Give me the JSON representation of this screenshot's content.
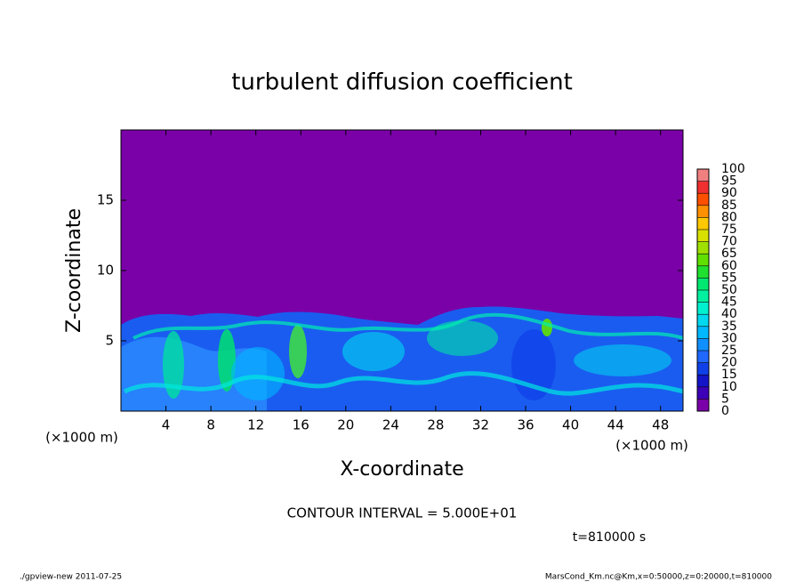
{
  "chart_data": {
    "type": "heatmap",
    "title": "turbulent diffusion coefficient",
    "x_label": "X-coordinate",
    "y_label": "Z-coordinate",
    "x_unit": "(×1000 m)",
    "y_unit": "(×1000 m)",
    "xlim": [
      0,
      50
    ],
    "xticks": [
      4,
      8,
      12,
      16,
      20,
      24,
      28,
      32,
      36,
      40,
      44,
      48
    ],
    "ylim": [
      0,
      20
    ],
    "yticks": [
      5,
      10,
      15
    ],
    "colorbar": {
      "levels": [
        0,
        5,
        10,
        15,
        20,
        25,
        30,
        35,
        40,
        45,
        50,
        55,
        60,
        65,
        70,
        75,
        80,
        85,
        90,
        95,
        100
      ],
      "colors": [
        "#7a00a8",
        "#3c00b8",
        "#1414c8",
        "#1040e8",
        "#2068ff",
        "#1090ff",
        "#00b8ff",
        "#00d8f0",
        "#00f0d0",
        "#00f0a0",
        "#00e870",
        "#20e030",
        "#60e000",
        "#a0e000",
        "#d8e000",
        "#ffc800",
        "#ff9000",
        "#ff5000",
        "#f03030",
        "#f08080"
      ]
    },
    "annotation": "CONTOUR INTERVAL = 5.000E+01",
    "time_label": "t=810000 s",
    "footer_left": "./gpview-new  2011-07-25",
    "footer_right": "MarsCond_Km.nc@Km,x=0:50000,z=0:20000,t=810000"
  }
}
